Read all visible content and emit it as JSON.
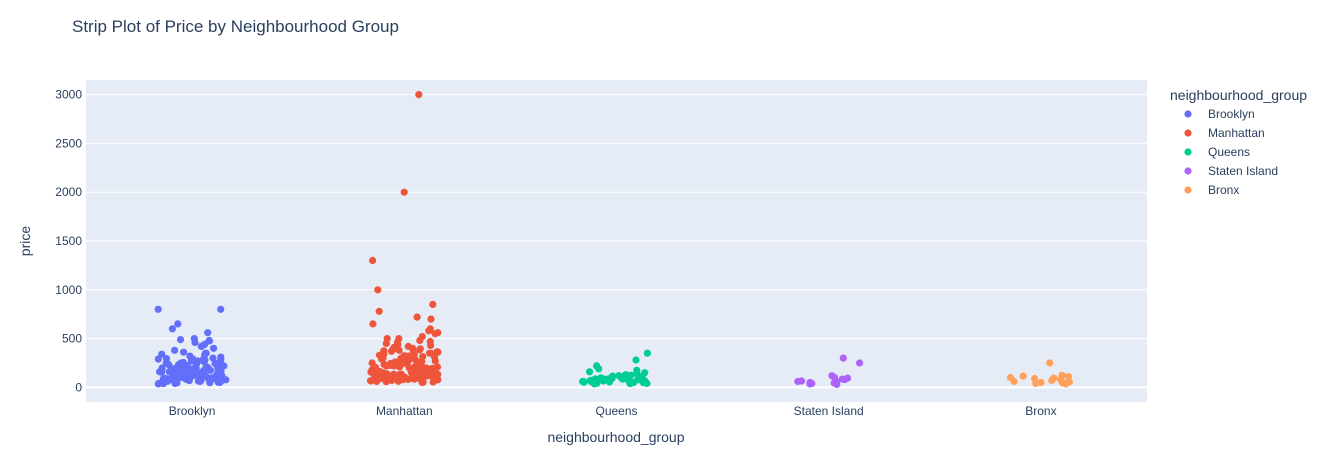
{
  "chart_data": {
    "type": "scatter",
    "subtype": "strip",
    "title": "Strip Plot of Price by Neighbourhood Group",
    "xlabel": "neighbourhood_group",
    "ylabel": "price",
    "categories": [
      "Brooklyn",
      "Manhattan",
      "Queens",
      "Staten Island",
      "Bronx"
    ],
    "ylim": [
      -150,
      3150
    ],
    "yticks": [
      0,
      500,
      1000,
      1500,
      2000,
      2500,
      3000
    ],
    "grid": true,
    "legend_title": "neighbourhood_group",
    "legend_position": "top-right",
    "colors": {
      "plot_bg": "#e5ecf6",
      "grid": "#ffffff",
      "text": "#2a3f5f"
    },
    "series": [
      {
        "name": "Brooklyn",
        "color": "#636efa",
        "values": [
          800,
          800,
          650,
          600,
          560,
          500,
          490,
          480,
          475,
          460,
          440,
          420,
          400,
          380,
          360,
          350,
          350,
          340,
          330,
          320,
          310,
          300,
          295,
          290,
          285,
          280,
          275,
          270,
          265,
          260,
          255,
          250,
          245,
          240,
          235,
          230,
          225,
          220,
          215,
          210,
          205,
          200,
          198,
          195,
          192,
          190,
          185,
          180,
          178,
          175,
          172,
          170,
          168,
          165,
          162,
          160,
          158,
          155,
          152,
          150,
          148,
          145,
          142,
          140,
          138,
          135,
          132,
          130,
          128,
          125,
          122,
          120,
          118,
          115,
          112,
          110,
          108,
          105,
          102,
          100,
          98,
          95,
          92,
          90,
          88,
          85,
          82,
          80,
          78,
          75,
          72,
          70,
          68,
          65,
          62,
          60,
          58,
          55,
          52,
          50,
          48,
          45,
          42,
          40,
          38,
          35,
          60,
          75,
          90,
          110,
          130,
          150,
          170,
          190,
          210,
          230,
          250,
          270,
          290,
          100,
          120,
          140,
          160,
          180,
          200,
          220,
          240,
          260,
          80,
          95,
          115,
          135,
          155,
          175,
          195
        ]
      },
      {
        "name": "Manhattan",
        "color": "#ef553b",
        "values": [
          3000,
          2000,
          1300,
          1000,
          850,
          780,
          720,
          700,
          650,
          600,
          580,
          560,
          550,
          520,
          500,
          500,
          480,
          470,
          460,
          450,
          440,
          430,
          420,
          410,
          400,
          395,
          390,
          385,
          380,
          375,
          370,
          365,
          360,
          355,
          350,
          345,
          340,
          335,
          330,
          325,
          320,
          315,
          310,
          305,
          300,
          295,
          290,
          285,
          280,
          275,
          270,
          265,
          260,
          255,
          250,
          245,
          240,
          235,
          230,
          225,
          220,
          215,
          210,
          205,
          200,
          198,
          195,
          192,
          190,
          185,
          180,
          178,
          175,
          172,
          170,
          168,
          165,
          162,
          160,
          158,
          155,
          152,
          150,
          148,
          145,
          142,
          140,
          138,
          135,
          132,
          130,
          128,
          125,
          122,
          120,
          118,
          115,
          112,
          110,
          108,
          105,
          102,
          100,
          98,
          95,
          92,
          90,
          88,
          85,
          82,
          80,
          78,
          75,
          72,
          70,
          68,
          65,
          62,
          60,
          58,
          55,
          52,
          50,
          100,
          120,
          140,
          160,
          180,
          200,
          220,
          240,
          260,
          280,
          300,
          90,
          110,
          130,
          150,
          170,
          190,
          210,
          230,
          250,
          270,
          80,
          95,
          115,
          135,
          155,
          175,
          195
        ]
      },
      {
        "name": "Queens",
        "color": "#00cc96",
        "values": [
          350,
          280,
          220,
          190,
          175,
          160,
          150,
          140,
          130,
          125,
          120,
          115,
          110,
          105,
          100,
          98,
          95,
          92,
          90,
          88,
          85,
          82,
          80,
          78,
          75,
          72,
          70,
          68,
          65,
          62,
          60,
          58,
          55,
          52,
          50,
          48,
          45,
          42,
          40,
          38,
          35,
          70,
          90,
          60,
          80,
          100,
          50,
          65,
          85
        ]
      },
      {
        "name": "Staten Island",
        "color": "#ab63fa",
        "values": [
          300,
          250,
          120,
          100,
          95,
          85,
          80,
          70,
          65,
          60,
          55,
          50,
          45,
          40,
          35,
          30
        ]
      },
      {
        "name": "Bronx",
        "color": "#ffa15a",
        "values": [
          250,
          125,
          115,
          110,
          100,
          95,
          90,
          80,
          70,
          65,
          60,
          55,
          50,
          45,
          40,
          35
        ]
      }
    ]
  }
}
